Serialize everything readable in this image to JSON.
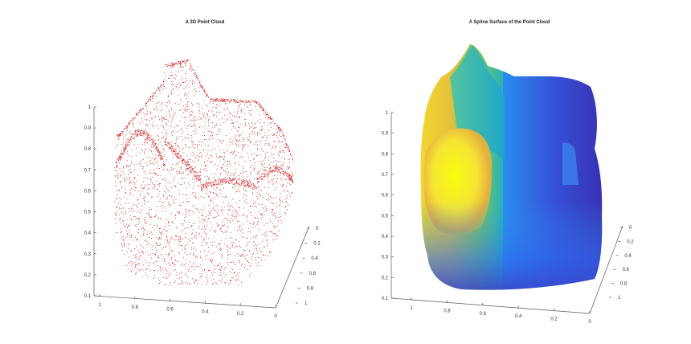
{
  "chart_data": [
    {
      "type": "scatter",
      "title": "A 3D Point Cloud",
      "marker_color": "#d42020",
      "z_ticks": [
        "0.1",
        "0.2",
        "0.3",
        "0.4",
        "0.5",
        "0.6",
        "0.7",
        "0.8",
        "0.9",
        "1"
      ],
      "x_ticks": [
        "1",
        "0.8",
        "0.6",
        "0.4",
        "0.2",
        "0"
      ],
      "y_ticks": [
        "0",
        "0.2",
        "0.4",
        "0.6",
        "0.8",
        "1"
      ],
      "zlim": [
        0.1,
        1
      ],
      "xlim": [
        1,
        0
      ],
      "ylim": [
        0,
        1
      ]
    },
    {
      "type": "surface",
      "title": "A Spline Surface of the Point Cloud",
      "colormap": [
        "#3e26a8",
        "#2c74f6",
        "#1cb3c8",
        "#6ecb5c",
        "#f6e534",
        "#f9fb0e"
      ],
      "z_ticks": [
        "0.1",
        "0.2",
        "0.3",
        "0.4",
        "0.5",
        "0.6",
        "0.7",
        "0.8",
        "0.9",
        "1"
      ],
      "x_ticks": [
        "1",
        "0.8",
        "0.6",
        "0.4",
        "0.2",
        "0"
      ],
      "y_ticks": [
        "0",
        "0.2",
        "0.4",
        "0.6",
        "0.8",
        "1"
      ],
      "zlim": [
        0.1,
        1
      ],
      "xlim": [
        1,
        0
      ],
      "ylim": [
        0,
        1
      ]
    }
  ]
}
